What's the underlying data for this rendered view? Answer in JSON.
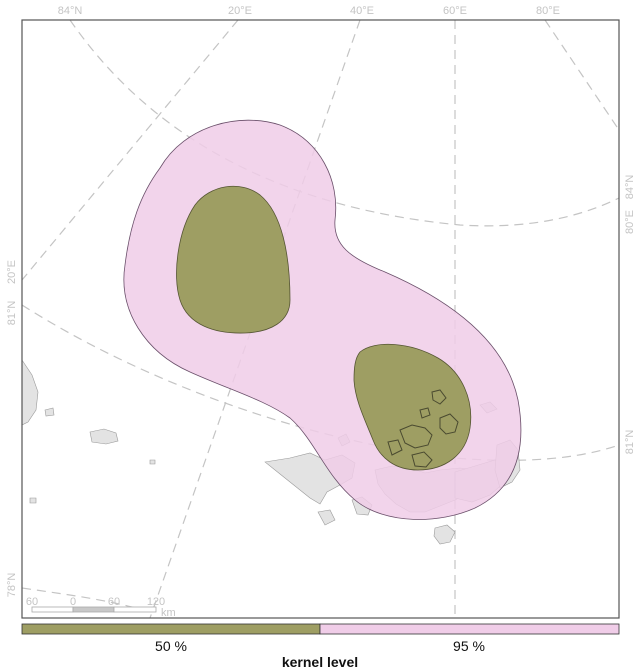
{
  "graticule_labels": {
    "top": [
      "84°N",
      "20°E",
      "40°E",
      "60°E",
      "80°E"
    ],
    "left": [
      "20°E",
      "81°N",
      "78°N"
    ],
    "right": [
      "84°N",
      "80°E",
      "81°N"
    ]
  },
  "scale_bar": {
    "ticks": [
      "60",
      "0",
      "60",
      "120"
    ],
    "unit": "km"
  },
  "kernel_levels": [
    {
      "label": "50 %",
      "color": "#9e9e63"
    },
    {
      "label": "95 %",
      "color": "#f0cde8"
    }
  ],
  "legend_title": "kernel level",
  "colors": {
    "land": "#e3e3e3",
    "graticule": "#c4c4c4",
    "frame": "#555555"
  }
}
